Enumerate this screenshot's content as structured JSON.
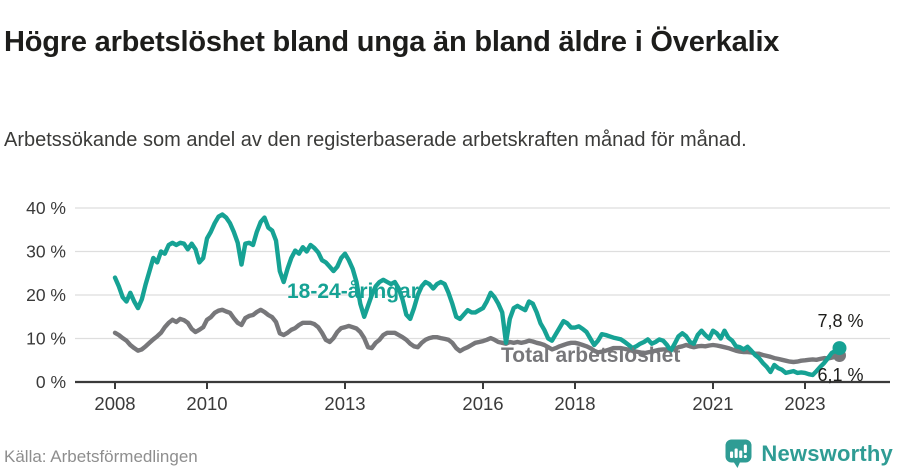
{
  "header": {
    "title": "Högre arbetslöshet bland unga än bland äldre i Överkalix",
    "subtitle": "Arbetssökande som andel av den registerbaserade arbetskraften månad för månad."
  },
  "footer": {
    "source": "Källa: Arbetsförmedlingen",
    "brand": "Newsworthy",
    "brand_icon": "newsworthy-speech-bubble-bar-chart-icon"
  },
  "colors": {
    "grid": "#dedede",
    "axis": "#3a3a3a",
    "axis_text": "#3a3a3a",
    "annotation_text": "#1d1d1b",
    "brand": "#2f9c94"
  },
  "chart_data": {
    "type": "line",
    "title": "Högre arbetslöshet bland unga än bland äldre i Överkalix",
    "subtitle": "Arbetssökande som andel av den registerbaserade arbetskraften månad för månad.",
    "xlabel": "",
    "ylabel": "",
    "ylim": [
      0,
      42
    ],
    "grid": "horizontal",
    "legend_position": "inline-labels",
    "x_unit": "months",
    "months_per_point": 1,
    "x_start_year": 2008,
    "x_end": "2023",
    "y_ticks": [
      {
        "value": 40,
        "label": "40 %"
      },
      {
        "value": 30,
        "label": "30 %"
      },
      {
        "value": 20,
        "label": "20 %"
      },
      {
        "value": 10,
        "label": "10 %"
      },
      {
        "value": 0,
        "label": "0 %"
      }
    ],
    "x_ticks": [
      {
        "year": 2008,
        "label": "2008"
      },
      {
        "year": 2010,
        "label": "2010"
      },
      {
        "year": 2013,
        "label": "2013"
      },
      {
        "year": 2016,
        "label": "2016"
      },
      {
        "year": 2018,
        "label": "2018"
      },
      {
        "year": 2021,
        "label": "2021"
      },
      {
        "year": 2023,
        "label": "2023"
      }
    ],
    "series": [
      {
        "name": "18-24-åringar",
        "color": "#16a294",
        "end_label": "7,8 %",
        "end_value": 7.8,
        "values": [
          24,
          22,
          19.5,
          18.5,
          20.5,
          18.5,
          17,
          19,
          22.5,
          25.5,
          28.5,
          27.5,
          30,
          29.5,
          31.5,
          32,
          31.5,
          32,
          31.8,
          30.5,
          31.8,
          30.5,
          27.5,
          28.5,
          33,
          34.5,
          36.5,
          38,
          38.5,
          37.8,
          36.5,
          34.5,
          32,
          27,
          31.8,
          32,
          31.5,
          34.5,
          36.8,
          37.8,
          35.5,
          34.8,
          32.5,
          25.5,
          23,
          26,
          28.5,
          30.2,
          29.5,
          31,
          30,
          31.5,
          30.8,
          29.8,
          28,
          27.5,
          26.5,
          25.5,
          26.5,
          28.5,
          29.5,
          28,
          26,
          23,
          18,
          15,
          17.5,
          20,
          22,
          23,
          23.5,
          23,
          22.5,
          23,
          21.5,
          19,
          15.5,
          14.5,
          17,
          20,
          22,
          23,
          22.5,
          21.5,
          22.5,
          23,
          22.5,
          20.5,
          18,
          15,
          14.5,
          15.5,
          16.5,
          16,
          16,
          16.5,
          17,
          18.5,
          20.5,
          19.5,
          18,
          16,
          9,
          14.5,
          17,
          17.5,
          17,
          16.5,
          18.5,
          18,
          16,
          13.5,
          12,
          10,
          9.5,
          11,
          12.5,
          14,
          13.5,
          12.5,
          12.5,
          12.8,
          12.2,
          11.5,
          10,
          8.5,
          9.5,
          11,
          10.8,
          10.5,
          10.2,
          10,
          9.8,
          9.2,
          8.5,
          7.8,
          8.2,
          8.8,
          9.2,
          9.8,
          8.8,
          9.2,
          9.8,
          9.5,
          8.5,
          7.2,
          8.8,
          10.5,
          11.2,
          10.5,
          9.2,
          8.8,
          10.8,
          11.8,
          10.8,
          10,
          11.8,
          11.2,
          10,
          11.8,
          10.2,
          9.5,
          8.2,
          8,
          7.5,
          8.1,
          7.2,
          6.2,
          5.5,
          4.4,
          3.5,
          2.3,
          3.9,
          3.2,
          2.8,
          2.1,
          2.3,
          2.5,
          2.1,
          2.2,
          2.1,
          1.8,
          1.6,
          2.5,
          3.5,
          4.4,
          5.5,
          6.7,
          7.2,
          7.8
        ]
      },
      {
        "name": "Total arbetslöshet",
        "color": "#77777a",
        "end_label": "6,1 %",
        "end_value": 6.1,
        "values": [
          11.3,
          10.8,
          10.1,
          9.5,
          8.5,
          7.8,
          7.2,
          7.5,
          8.2,
          9,
          9.8,
          10.5,
          11.3,
          12.6,
          13.6,
          14.3,
          13.8,
          14.5,
          14.2,
          13.6,
          12.2,
          11.5,
          12,
          12.6,
          14.3,
          14.9,
          15.9,
          16.4,
          16.6,
          16.2,
          15.9,
          14.7,
          13.6,
          13.1,
          14.7,
          15.2,
          15.4,
          16.1,
          16.6,
          16.1,
          15.4,
          14.9,
          13.8,
          11.2,
          10.8,
          11.3,
          12,
          12.4,
          13.1,
          13.6,
          13.6,
          13.6,
          13.3,
          12.6,
          11.3,
          9.7,
          9.2,
          10.1,
          11.5,
          12.4,
          12.6,
          12.9,
          12.6,
          12.3,
          11.5,
          10.1,
          8,
          7.8,
          9,
          9.7,
          10.8,
          11.3,
          11.3,
          11.3,
          10.8,
          10.3,
          9.7,
          8.8,
          8.2,
          8,
          9,
          9.7,
          10.1,
          10.3,
          10.3,
          10.1,
          9.9,
          9.7,
          9,
          7.8,
          7.1,
          7.6,
          8,
          8.5,
          9,
          9.2,
          9.4,
          9.7,
          10.1,
          9.7,
          9.2,
          9,
          8.8,
          9.2,
          9,
          9.2,
          9,
          9.2,
          9.5,
          9.3,
          9,
          8.8,
          8.5,
          8,
          7.5,
          7.8,
          8.2,
          8.5,
          8.8,
          9,
          9,
          8.8,
          8.5,
          8.2,
          7.8,
          7.2,
          6.8,
          7,
          7.2,
          7.5,
          7.8,
          7.8,
          7.8,
          7.6,
          7.4,
          7.2,
          7,
          6.8,
          6.6,
          6.8,
          7,
          7.2,
          7.4,
          7.5,
          7.5,
          7.4,
          7.6,
          8,
          8.2,
          8.5,
          8.2,
          8,
          8.2,
          8.3,
          8.2,
          8.4,
          8.5,
          8.4,
          8.2,
          8,
          7.8,
          7.5,
          7.2,
          7,
          6.9,
          6.9,
          6.8,
          6.5,
          6.5,
          6.2,
          6,
          5.8,
          5.5,
          5.3,
          5.1,
          4.9,
          4.7,
          4.6,
          4.7,
          4.9,
          5,
          5.1,
          5.2,
          5.1,
          5.3,
          5.5,
          5.4,
          5.6,
          5.8,
          6.1
        ]
      }
    ]
  }
}
